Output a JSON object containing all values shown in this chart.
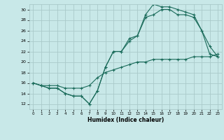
{
  "xlabel": "Humidex (Indice chaleur)",
  "background_color": "#c8e8e8",
  "grid_color": "#aacaca",
  "line_color": "#1a6b5a",
  "xlim": [
    -0.5,
    23.5
  ],
  "ylim": [
    11,
    31
  ],
  "xticks": [
    0,
    1,
    2,
    3,
    4,
    5,
    6,
    7,
    8,
    9,
    10,
    11,
    12,
    13,
    14,
    15,
    16,
    17,
    18,
    19,
    20,
    21,
    22,
    23
  ],
  "yticks": [
    12,
    14,
    16,
    18,
    20,
    22,
    24,
    26,
    28,
    30
  ],
  "line1_x": [
    0,
    1,
    2,
    3,
    4,
    5,
    6,
    7,
    8,
    9,
    10,
    11,
    12,
    13,
    14,
    15,
    16,
    17,
    18,
    19,
    20,
    21,
    22,
    23
  ],
  "line1_y": [
    16,
    15.5,
    15,
    15,
    14,
    13.5,
    13.5,
    12,
    14.5,
    19,
    22,
    22,
    24.5,
    25,
    29,
    31,
    30.5,
    30.5,
    30,
    29.5,
    29,
    26,
    23,
    21
  ],
  "line2_x": [
    0,
    1,
    2,
    3,
    4,
    5,
    6,
    7,
    8,
    9,
    10,
    11,
    12,
    13,
    14,
    15,
    16,
    17,
    18,
    19,
    20,
    21,
    22,
    23
  ],
  "line2_y": [
    16,
    15.5,
    15,
    15,
    14,
    13.5,
    13.5,
    12,
    14.5,
    19,
    22,
    22,
    24,
    25,
    28.5,
    29,
    30,
    30,
    29,
    29,
    28.5,
    26,
    21.5,
    21
  ],
  "line3_x": [
    0,
    1,
    2,
    3,
    4,
    5,
    6,
    7,
    8,
    9,
    10,
    11,
    12,
    13,
    14,
    15,
    16,
    17,
    18,
    19,
    20,
    21,
    22,
    23
  ],
  "line3_y": [
    16,
    15.5,
    15.5,
    15.5,
    15,
    15,
    15,
    15.5,
    17,
    18,
    18.5,
    19,
    19.5,
    20,
    20,
    20.5,
    20.5,
    20.5,
    20.5,
    20.5,
    21,
    21,
    21,
    21.5
  ]
}
